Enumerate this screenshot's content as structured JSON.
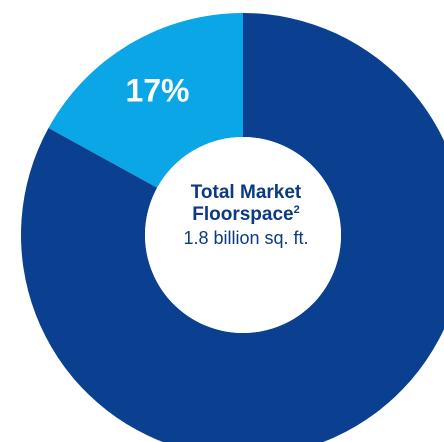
{
  "chart_data": {
    "type": "pie",
    "slices": [
      {
        "label": "17%",
        "value": 17,
        "color": "#0aa6e6"
      },
      {
        "label": "",
        "value": 83,
        "color": "#0b3f8f"
      }
    ],
    "center": {
      "title_line1": "Total Market",
      "title_line2": "Floorspace",
      "footnote": "2",
      "value": "1.8 billion sq. ft."
    }
  },
  "colors": {
    "primary_slice": "#0b3f8f",
    "secondary_slice": "#0aa6e6",
    "center_text": "#0b3a82"
  }
}
